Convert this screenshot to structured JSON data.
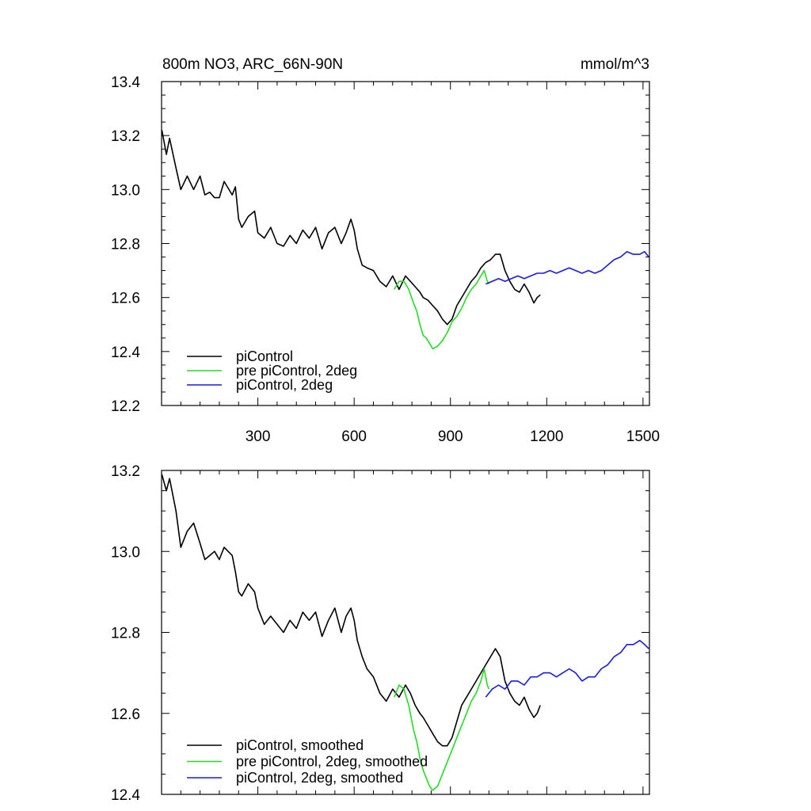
{
  "chart_data": [
    {
      "type": "line",
      "title": "800m NO3, ARC_66N-90N",
      "units": "mmol/m^3",
      "xlim": [
        0,
        1520
      ],
      "ylim": [
        12.2,
        13.4
      ],
      "xticks": [
        300,
        600,
        900,
        1200,
        1500
      ],
      "yticks": [
        12.2,
        12.4,
        12.6,
        12.8,
        13.0,
        13.2,
        13.4
      ],
      "ytick_labels": [
        "12.2",
        "12.4",
        "12.6",
        "12.8",
        "13.0",
        "13.2",
        "13.4"
      ],
      "legend_position": "lower-left",
      "grid": false,
      "series": [
        {
          "name": "piControl",
          "color": "#000000",
          "points": [
            [
              1,
              13.22
            ],
            [
              15,
              13.13
            ],
            [
              25,
              13.19
            ],
            [
              45,
              13.08
            ],
            [
              60,
              13.0
            ],
            [
              80,
              13.05
            ],
            [
              100,
              13.0
            ],
            [
              120,
              13.05
            ],
            [
              135,
              12.98
            ],
            [
              150,
              12.99
            ],
            [
              165,
              12.97
            ],
            [
              180,
              12.97
            ],
            [
              195,
              13.03
            ],
            [
              220,
              12.98
            ],
            [
              230,
              13.01
            ],
            [
              240,
              12.89
            ],
            [
              250,
              12.86
            ],
            [
              270,
              12.9
            ],
            [
              290,
              12.92
            ],
            [
              300,
              12.84
            ],
            [
              320,
              12.82
            ],
            [
              340,
              12.86
            ],
            [
              360,
              12.8
            ],
            [
              380,
              12.79
            ],
            [
              400,
              12.83
            ],
            [
              420,
              12.8
            ],
            [
              440,
              12.85
            ],
            [
              460,
              12.82
            ],
            [
              480,
              12.86
            ],
            [
              500,
              12.78
            ],
            [
              520,
              12.84
            ],
            [
              540,
              12.86
            ],
            [
              560,
              12.8
            ],
            [
              575,
              12.84
            ],
            [
              590,
              12.89
            ],
            [
              600,
              12.85
            ],
            [
              610,
              12.78
            ],
            [
              625,
              12.72
            ],
            [
              640,
              12.71
            ],
            [
              660,
              12.7
            ],
            [
              680,
              12.66
            ],
            [
              700,
              12.64
            ],
            [
              720,
              12.68
            ],
            [
              740,
              12.63
            ],
            [
              760,
              12.68
            ],
            [
              775,
              12.66
            ],
            [
              790,
              12.64
            ],
            [
              805,
              12.62
            ],
            [
              815,
              12.6
            ],
            [
              830,
              12.59
            ],
            [
              845,
              12.57
            ],
            [
              860,
              12.55
            ],
            [
              875,
              12.52
            ],
            [
              890,
              12.5
            ],
            [
              905,
              12.52
            ],
            [
              920,
              12.57
            ],
            [
              935,
              12.6
            ],
            [
              950,
              12.63
            ],
            [
              965,
              12.66
            ],
            [
              980,
              12.68
            ],
            [
              995,
              12.71
            ],
            [
              1010,
              12.73
            ],
            [
              1025,
              12.74
            ],
            [
              1040,
              12.76
            ],
            [
              1055,
              12.76
            ],
            [
              1070,
              12.7
            ],
            [
              1085,
              12.66
            ],
            [
              1100,
              12.63
            ],
            [
              1115,
              12.62
            ],
            [
              1130,
              12.65
            ],
            [
              1145,
              12.62
            ],
            [
              1160,
              12.58
            ],
            [
              1170,
              12.6
            ],
            [
              1180,
              12.61
            ]
          ]
        },
        {
          "name": "pre piControl, 2deg",
          "color": "#22dd22",
          "points": [
            [
              725,
              12.63
            ],
            [
              740,
              12.66
            ],
            [
              755,
              12.66
            ],
            [
              770,
              12.63
            ],
            [
              785,
              12.58
            ],
            [
              795,
              12.55
            ],
            [
              805,
              12.5
            ],
            [
              815,
              12.46
            ],
            [
              825,
              12.45
            ],
            [
              835,
              12.43
            ],
            [
              845,
              12.41
            ],
            [
              860,
              12.42
            ],
            [
              875,
              12.44
            ],
            [
              890,
              12.47
            ],
            [
              905,
              12.51
            ],
            [
              920,
              12.53
            ],
            [
              935,
              12.56
            ],
            [
              950,
              12.6
            ],
            [
              965,
              12.63
            ],
            [
              980,
              12.65
            ],
            [
              995,
              12.68
            ],
            [
              1005,
              12.7
            ],
            [
              1010,
              12.68
            ],
            [
              1015,
              12.66
            ],
            [
              1020,
              12.65
            ]
          ]
        },
        {
          "name": "piControl, 2deg",
          "color": "#1a1ae6",
          "points": [
            [
              1010,
              12.65
            ],
            [
              1030,
              12.66
            ],
            [
              1050,
              12.67
            ],
            [
              1070,
              12.66
            ],
            [
              1090,
              12.67
            ],
            [
              1110,
              12.68
            ],
            [
              1130,
              12.67
            ],
            [
              1150,
              12.68
            ],
            [
              1170,
              12.69
            ],
            [
              1190,
              12.69
            ],
            [
              1210,
              12.7
            ],
            [
              1230,
              12.69
            ],
            [
              1250,
              12.7
            ],
            [
              1270,
              12.71
            ],
            [
              1290,
              12.7
            ],
            [
              1310,
              12.69
            ],
            [
              1330,
              12.7
            ],
            [
              1350,
              12.69
            ],
            [
              1370,
              12.7
            ],
            [
              1390,
              12.72
            ],
            [
              1410,
              12.74
            ],
            [
              1430,
              12.75
            ],
            [
              1450,
              12.77
            ],
            [
              1470,
              12.76
            ],
            [
              1490,
              12.76
            ],
            [
              1505,
              12.77
            ],
            [
              1518,
              12.75
            ]
          ]
        }
      ]
    },
    {
      "type": "line",
      "xlim": [
        0,
        1520
      ],
      "ylim": [
        12.4,
        13.2
      ],
      "xticks": [
        300,
        600,
        900,
        1200,
        1500
      ],
      "yticks": [
        12.4,
        12.6,
        12.8,
        13.0,
        13.2
      ],
      "ytick_labels": [
        "12.4",
        "12.6",
        "12.8",
        "13.0",
        "13.2"
      ],
      "legend_position": "lower-left",
      "grid": false,
      "series": [
        {
          "name": "piControl, smoothed",
          "color": "#000000",
          "points": [
            [
              1,
              13.19
            ],
            [
              15,
              13.15
            ],
            [
              25,
              13.18
            ],
            [
              45,
              13.1
            ],
            [
              60,
              13.01
            ],
            [
              80,
              13.05
            ],
            [
              100,
              13.07
            ],
            [
              120,
              13.02
            ],
            [
              135,
              12.98
            ],
            [
              150,
              12.99
            ],
            [
              165,
              13.0
            ],
            [
              180,
              12.98
            ],
            [
              195,
              13.01
            ],
            [
              220,
              12.99
            ],
            [
              230,
              12.95
            ],
            [
              240,
              12.9
            ],
            [
              250,
              12.89
            ],
            [
              270,
              12.92
            ],
            [
              290,
              12.9
            ],
            [
              300,
              12.86
            ],
            [
              320,
              12.82
            ],
            [
              340,
              12.84
            ],
            [
              360,
              12.82
            ],
            [
              380,
              12.8
            ],
            [
              400,
              12.83
            ],
            [
              420,
              12.81
            ],
            [
              440,
              12.85
            ],
            [
              460,
              12.83
            ],
            [
              480,
              12.85
            ],
            [
              500,
              12.79
            ],
            [
              520,
              12.83
            ],
            [
              540,
              12.86
            ],
            [
              560,
              12.8
            ],
            [
              575,
              12.84
            ],
            [
              590,
              12.86
            ],
            [
              600,
              12.83
            ],
            [
              610,
              12.78
            ],
            [
              625,
              12.74
            ],
            [
              640,
              12.71
            ],
            [
              660,
              12.69
            ],
            [
              680,
              12.65
            ],
            [
              700,
              12.63
            ],
            [
              720,
              12.66
            ],
            [
              740,
              12.64
            ],
            [
              760,
              12.67
            ],
            [
              775,
              12.65
            ],
            [
              790,
              12.62
            ],
            [
              805,
              12.6
            ],
            [
              815,
              12.59
            ],
            [
              830,
              12.57
            ],
            [
              845,
              12.55
            ],
            [
              860,
              12.53
            ],
            [
              875,
              12.52
            ],
            [
              890,
              12.52
            ],
            [
              905,
              12.54
            ],
            [
              920,
              12.58
            ],
            [
              935,
              12.62
            ],
            [
              950,
              12.64
            ],
            [
              965,
              12.66
            ],
            [
              980,
              12.68
            ],
            [
              995,
              12.7
            ],
            [
              1010,
              12.72
            ],
            [
              1025,
              12.74
            ],
            [
              1040,
              12.76
            ],
            [
              1055,
              12.74
            ],
            [
              1070,
              12.68
            ],
            [
              1085,
              12.65
            ],
            [
              1100,
              12.63
            ],
            [
              1115,
              12.62
            ],
            [
              1130,
              12.64
            ],
            [
              1145,
              12.61
            ],
            [
              1160,
              12.59
            ],
            [
              1170,
              12.6
            ],
            [
              1180,
              12.62
            ]
          ]
        },
        {
          "name": "pre piControl, 2deg, smoothed",
          "color": "#22dd22",
          "points": [
            [
              725,
              12.64
            ],
            [
              740,
              12.67
            ],
            [
              755,
              12.66
            ],
            [
              770,
              12.62
            ],
            [
              785,
              12.56
            ],
            [
              795,
              12.53
            ],
            [
              805,
              12.49
            ],
            [
              815,
              12.46
            ],
            [
              825,
              12.44
            ],
            [
              835,
              12.42
            ],
            [
              845,
              12.41
            ],
            [
              860,
              12.42
            ],
            [
              875,
              12.45
            ],
            [
              890,
              12.48
            ],
            [
              905,
              12.51
            ],
            [
              920,
              12.54
            ],
            [
              935,
              12.57
            ],
            [
              950,
              12.6
            ],
            [
              965,
              12.63
            ],
            [
              980,
              12.65
            ],
            [
              995,
              12.68
            ],
            [
              1005,
              12.71
            ],
            [
              1010,
              12.69
            ],
            [
              1015,
              12.67
            ],
            [
              1020,
              12.66
            ]
          ]
        },
        {
          "name": "piControl, 2deg, smoothed",
          "color": "#1a1ae6",
          "points": [
            [
              1010,
              12.64
            ],
            [
              1030,
              12.66
            ],
            [
              1050,
              12.67
            ],
            [
              1070,
              12.66
            ],
            [
              1090,
              12.68
            ],
            [
              1110,
              12.68
            ],
            [
              1130,
              12.67
            ],
            [
              1150,
              12.69
            ],
            [
              1170,
              12.69
            ],
            [
              1190,
              12.7
            ],
            [
              1210,
              12.7
            ],
            [
              1230,
              12.69
            ],
            [
              1250,
              12.7
            ],
            [
              1270,
              12.71
            ],
            [
              1290,
              12.7
            ],
            [
              1310,
              12.68
            ],
            [
              1330,
              12.69
            ],
            [
              1350,
              12.69
            ],
            [
              1370,
              12.71
            ],
            [
              1390,
              12.72
            ],
            [
              1410,
              12.74
            ],
            [
              1430,
              12.75
            ],
            [
              1450,
              12.77
            ],
            [
              1470,
              12.77
            ],
            [
              1490,
              12.78
            ],
            [
              1505,
              12.77
            ],
            [
              1518,
              12.76
            ]
          ]
        }
      ]
    }
  ]
}
